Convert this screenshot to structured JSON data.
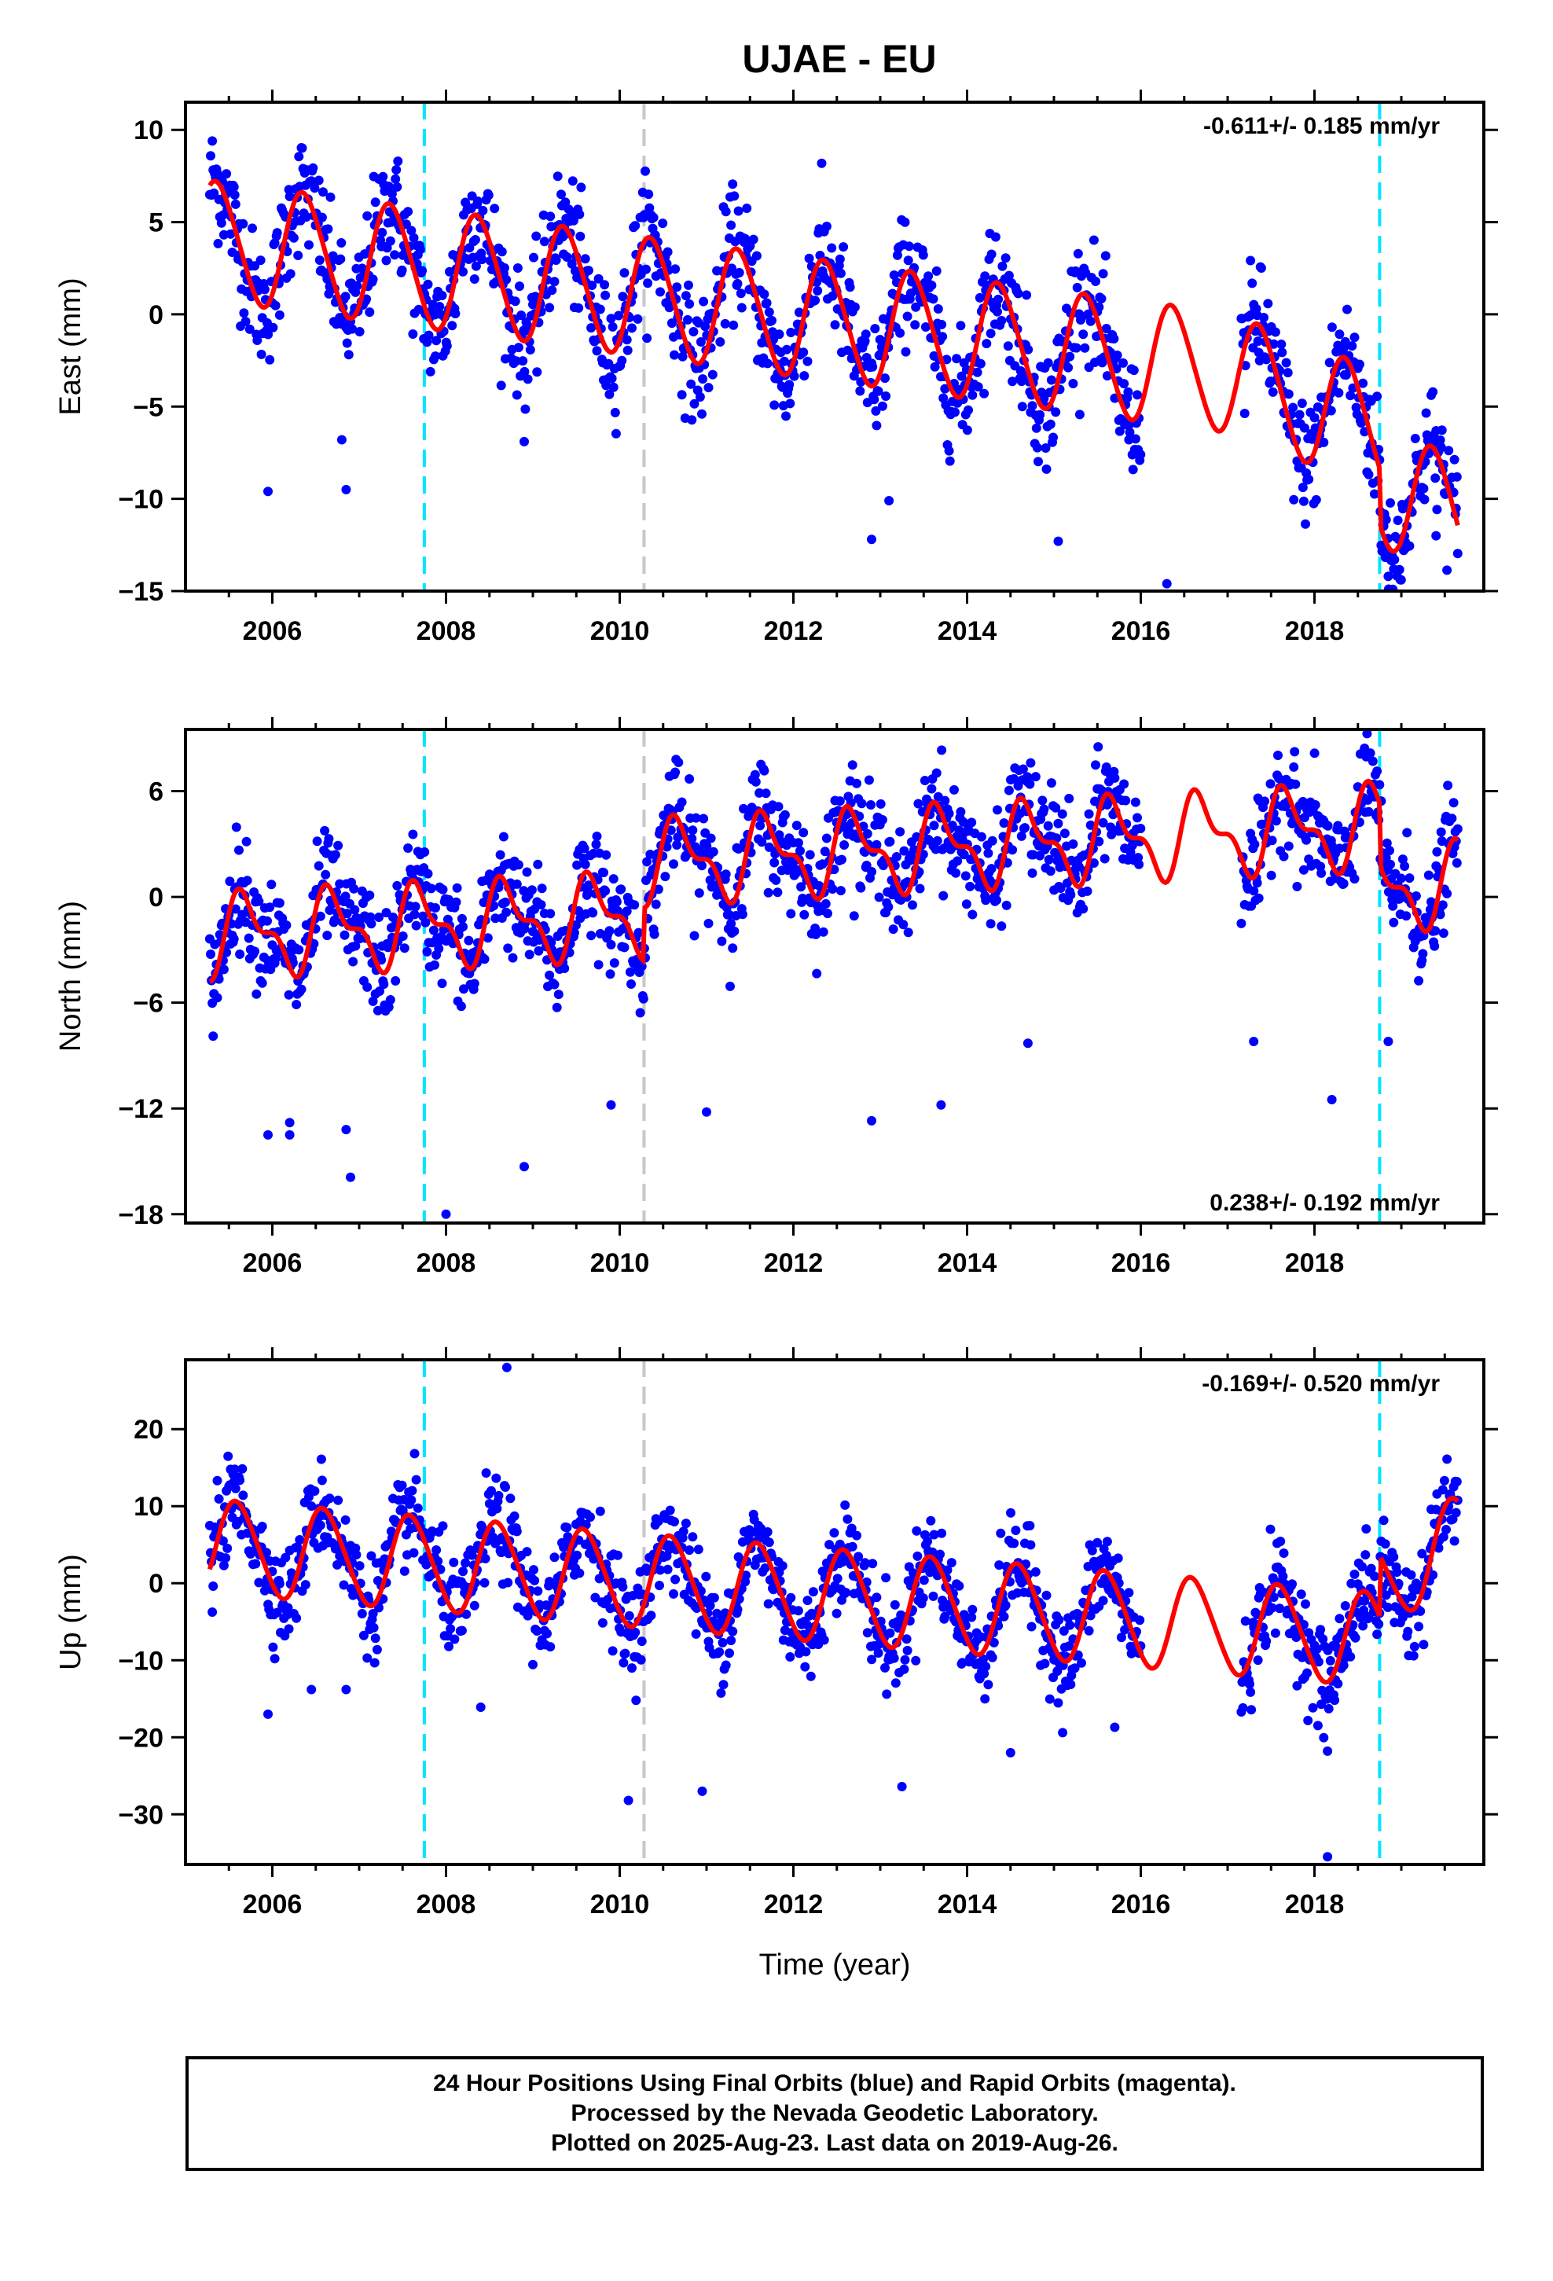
{
  "title": "UJAE - EU",
  "xlabel": "Time (year)",
  "colors": {
    "data": "#0000ff",
    "model": "#ff0000",
    "equipment": "#00e5ff",
    "other_break": "#c8c8c8",
    "axis": "#000000"
  },
  "panels": [
    {
      "name": "east",
      "ylabel": "East (mm)",
      "rate": "-0.611+/- 0.185 mm/yr",
      "rate_position": "top-right",
      "ylim": [
        -15,
        11.5
      ],
      "yticks": [
        10,
        5,
        0,
        -5,
        -10,
        -15
      ],
      "ytick_labels": [
        "10",
        "5",
        "0",
        "−5",
        "−10",
        "−15"
      ]
    },
    {
      "name": "north",
      "ylabel": "North (mm)",
      "rate": "0.238+/- 0.192 mm/yr",
      "rate_position": "bottom-right",
      "ylim": [
        -18.5,
        9.5
      ],
      "yticks": [
        6,
        0,
        -6,
        -12,
        -18
      ],
      "ytick_labels": [
        "6",
        "0",
        "−6",
        "−12",
        "−18"
      ]
    },
    {
      "name": "up",
      "ylabel": "Up (mm)",
      "rate": "-0.169+/- 0.520 mm/yr",
      "rate_position": "top-right",
      "ylim": [
        -36.5,
        29
      ],
      "yticks": [
        20,
        10,
        0,
        -10,
        -20,
        -30
      ],
      "ytick_labels": [
        "20",
        "10",
        "0",
        "−10",
        "−20",
        "−30"
      ]
    }
  ],
  "footer": {
    "line1": "24 Hour Positions Using Final Orbits (blue) and Rapid Orbits (magenta).",
    "line2": "Processed by the Nevada Geodetic Laboratory.",
    "line3": "Plotted on 2025-Aug-23. Last data on 2019-Aug-26."
  },
  "chart_data": {
    "type": "scatter",
    "title": "UJAE - EU",
    "xlabel": "Time (year)",
    "xlim": [
      2005.0,
      2019.95
    ],
    "xticks": [
      2006,
      2008,
      2010,
      2012,
      2014,
      2016,
      2018
    ],
    "breaks": [
      {
        "kind": "equipment",
        "x": 2007.75,
        "style": "cyan-dashed"
      },
      {
        "kind": "other",
        "x": 2010.28,
        "style": "gray-dashed"
      },
      {
        "kind": "equipment",
        "x": 2018.75,
        "style": "cyan-dashed"
      }
    ],
    "data_span": [
      2005.28,
      2019.65
    ],
    "data_gap": [
      2016.0,
      2017.15
    ],
    "series": [
      {
        "name": "East (mm)",
        "component": "east",
        "rate_mm_yr": -0.611,
        "rate_sigma": 0.185,
        "model": {
          "offset": 4.0,
          "trend": -0.611,
          "annual_amp": 3.2,
          "annual_phase": 0.12,
          "semiannual_amp": 0.3,
          "steps": [
            {
              "x": 2018.75,
              "dy": -3.0
            }
          ],
          "extra_trend": {
            "from": 2017.0,
            "rate": -1.2
          }
        },
        "scatter_sigma": 1.6,
        "outliers": [
          [
            2005.95,
            -9.6
          ],
          [
            2006.85,
            -9.5
          ],
          [
            2006.8,
            -6.8
          ],
          [
            2008.9,
            -6.9
          ],
          [
            2012.9,
            -12.2
          ],
          [
            2015.05,
            -12.3
          ],
          [
            2016.3,
            -14.6
          ],
          [
            2018.85,
            -14.2
          ],
          [
            2019.4,
            -12.0
          ],
          [
            2013.1,
            -10.1
          ],
          [
            2018.8,
            -12.8
          ]
        ]
      },
      {
        "name": "North (mm)",
        "component": "north",
        "rate_mm_yr": 0.238,
        "rate_sigma": 0.192,
        "model": {
          "offset": -2.2,
          "trend": 0.238,
          "annual_amp": 2.0,
          "annual_phase": 0.45,
          "semiannual_amp": 1.0,
          "steps": [
            {
              "x": 2010.28,
              "dy": 3.0
            },
            {
              "x": 2018.75,
              "dy": -3.5
            }
          ],
          "extra_trend": null
        },
        "scatter_sigma": 1.5,
        "outliers": [
          [
            2005.95,
            -13.5
          ],
          [
            2006.2,
            -13.5
          ],
          [
            2006.2,
            -12.8
          ],
          [
            2006.9,
            -15.9
          ],
          [
            2006.85,
            -13.2
          ],
          [
            2008.0,
            -18.0
          ],
          [
            2008.9,
            -15.3
          ],
          [
            2009.9,
            -11.8
          ],
          [
            2011.0,
            -12.2
          ],
          [
            2012.9,
            -12.7
          ],
          [
            2013.7,
            -11.8
          ],
          [
            2014.7,
            -8.3
          ],
          [
            2017.3,
            -8.2
          ],
          [
            2018.2,
            -11.5
          ],
          [
            2018.85,
            -8.2
          ]
        ]
      },
      {
        "name": "Up (mm)",
        "component": "up",
        "rate_mm_yr": -0.169,
        "rate_sigma": 0.52,
        "model": {
          "offset": 4.8,
          "trend": -0.9,
          "annual_amp": 6.0,
          "annual_phase": 0.35,
          "semiannual_amp": 0.6,
          "steps": [
            {
              "x": 2018.75,
              "dy": 8.0
            }
          ],
          "extra_trend": {
            "from": 2018.75,
            "rate": 6.0
          }
        },
        "scatter_sigma": 3.0,
        "outliers": [
          [
            2008.7,
            28.0
          ],
          [
            2005.95,
            -17.0
          ],
          [
            2006.45,
            -13.8
          ],
          [
            2006.85,
            -13.8
          ],
          [
            2010.1,
            -28.2
          ],
          [
            2010.95,
            -27.0
          ],
          [
            2013.25,
            -26.4
          ],
          [
            2014.5,
            -22.0
          ],
          [
            2018.15,
            -35.5
          ],
          [
            2018.15,
            -21.8
          ],
          [
            2015.1,
            -19.4
          ],
          [
            2008.4,
            -16.1
          ],
          [
            2015.7,
            -18.7
          ]
        ]
      }
    ]
  }
}
